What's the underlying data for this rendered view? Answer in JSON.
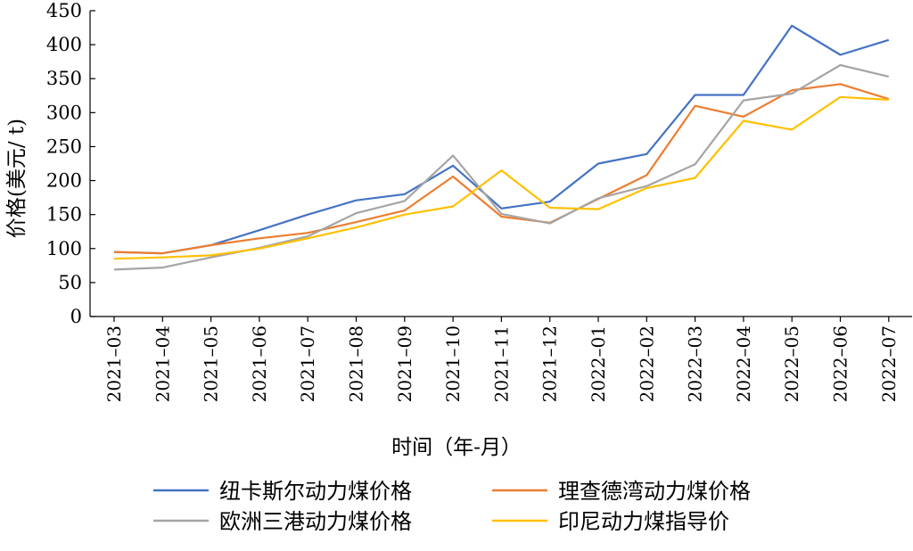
{
  "chart_data": {
    "type": "line",
    "title": "",
    "xlabel": "时间（年-月）",
    "ylabel": "价格(美元/ t)",
    "ylim": [
      0,
      450
    ],
    "yticks": [
      "0",
      "50",
      "100",
      "150",
      "200",
      "250",
      "300",
      "350",
      "400",
      "450"
    ],
    "categories": [
      "2021–03",
      "2021–04",
      "2021–05",
      "2021–06",
      "2021–07",
      "2021–08",
      "2021–09",
      "2021–10",
      "2021–11",
      "2021–12",
      "2022–01",
      "2022–02",
      "2022–03",
      "2022–04",
      "2022–05",
      "2022–06",
      "2022–07"
    ],
    "grid": false,
    "legend_position": "bottom",
    "series": [
      {
        "name": "纽卡斯尔动力煤价格",
        "color": "#4472c4",
        "values": [
          95,
          93,
          105,
          127,
          150,
          171,
          180,
          222,
          159,
          169,
          225,
          239,
          326,
          326,
          428,
          385,
          407
        ]
      },
      {
        "name": "理查德湾动力煤价格",
        "color": "#ed7d31",
        "values": [
          95,
          93,
          105,
          115,
          123,
          139,
          156,
          206,
          147,
          138,
          173,
          208,
          310,
          294,
          333,
          342,
          320
        ]
      },
      {
        "name": "欧洲三港动力煤价格",
        "color": "#a5a5a5",
        "values": [
          69,
          72,
          87,
          101,
          118,
          152,
          170,
          237,
          151,
          137,
          174,
          192,
          224,
          318,
          328,
          370,
          353
        ]
      },
      {
        "name": "印尼动力煤指导价",
        "color": "#ffc000",
        "values": [
          85,
          87,
          90,
          100,
          115,
          131,
          150,
          162,
          215,
          160,
          158,
          189,
          204,
          288,
          275,
          323,
          319
        ]
      }
    ]
  }
}
